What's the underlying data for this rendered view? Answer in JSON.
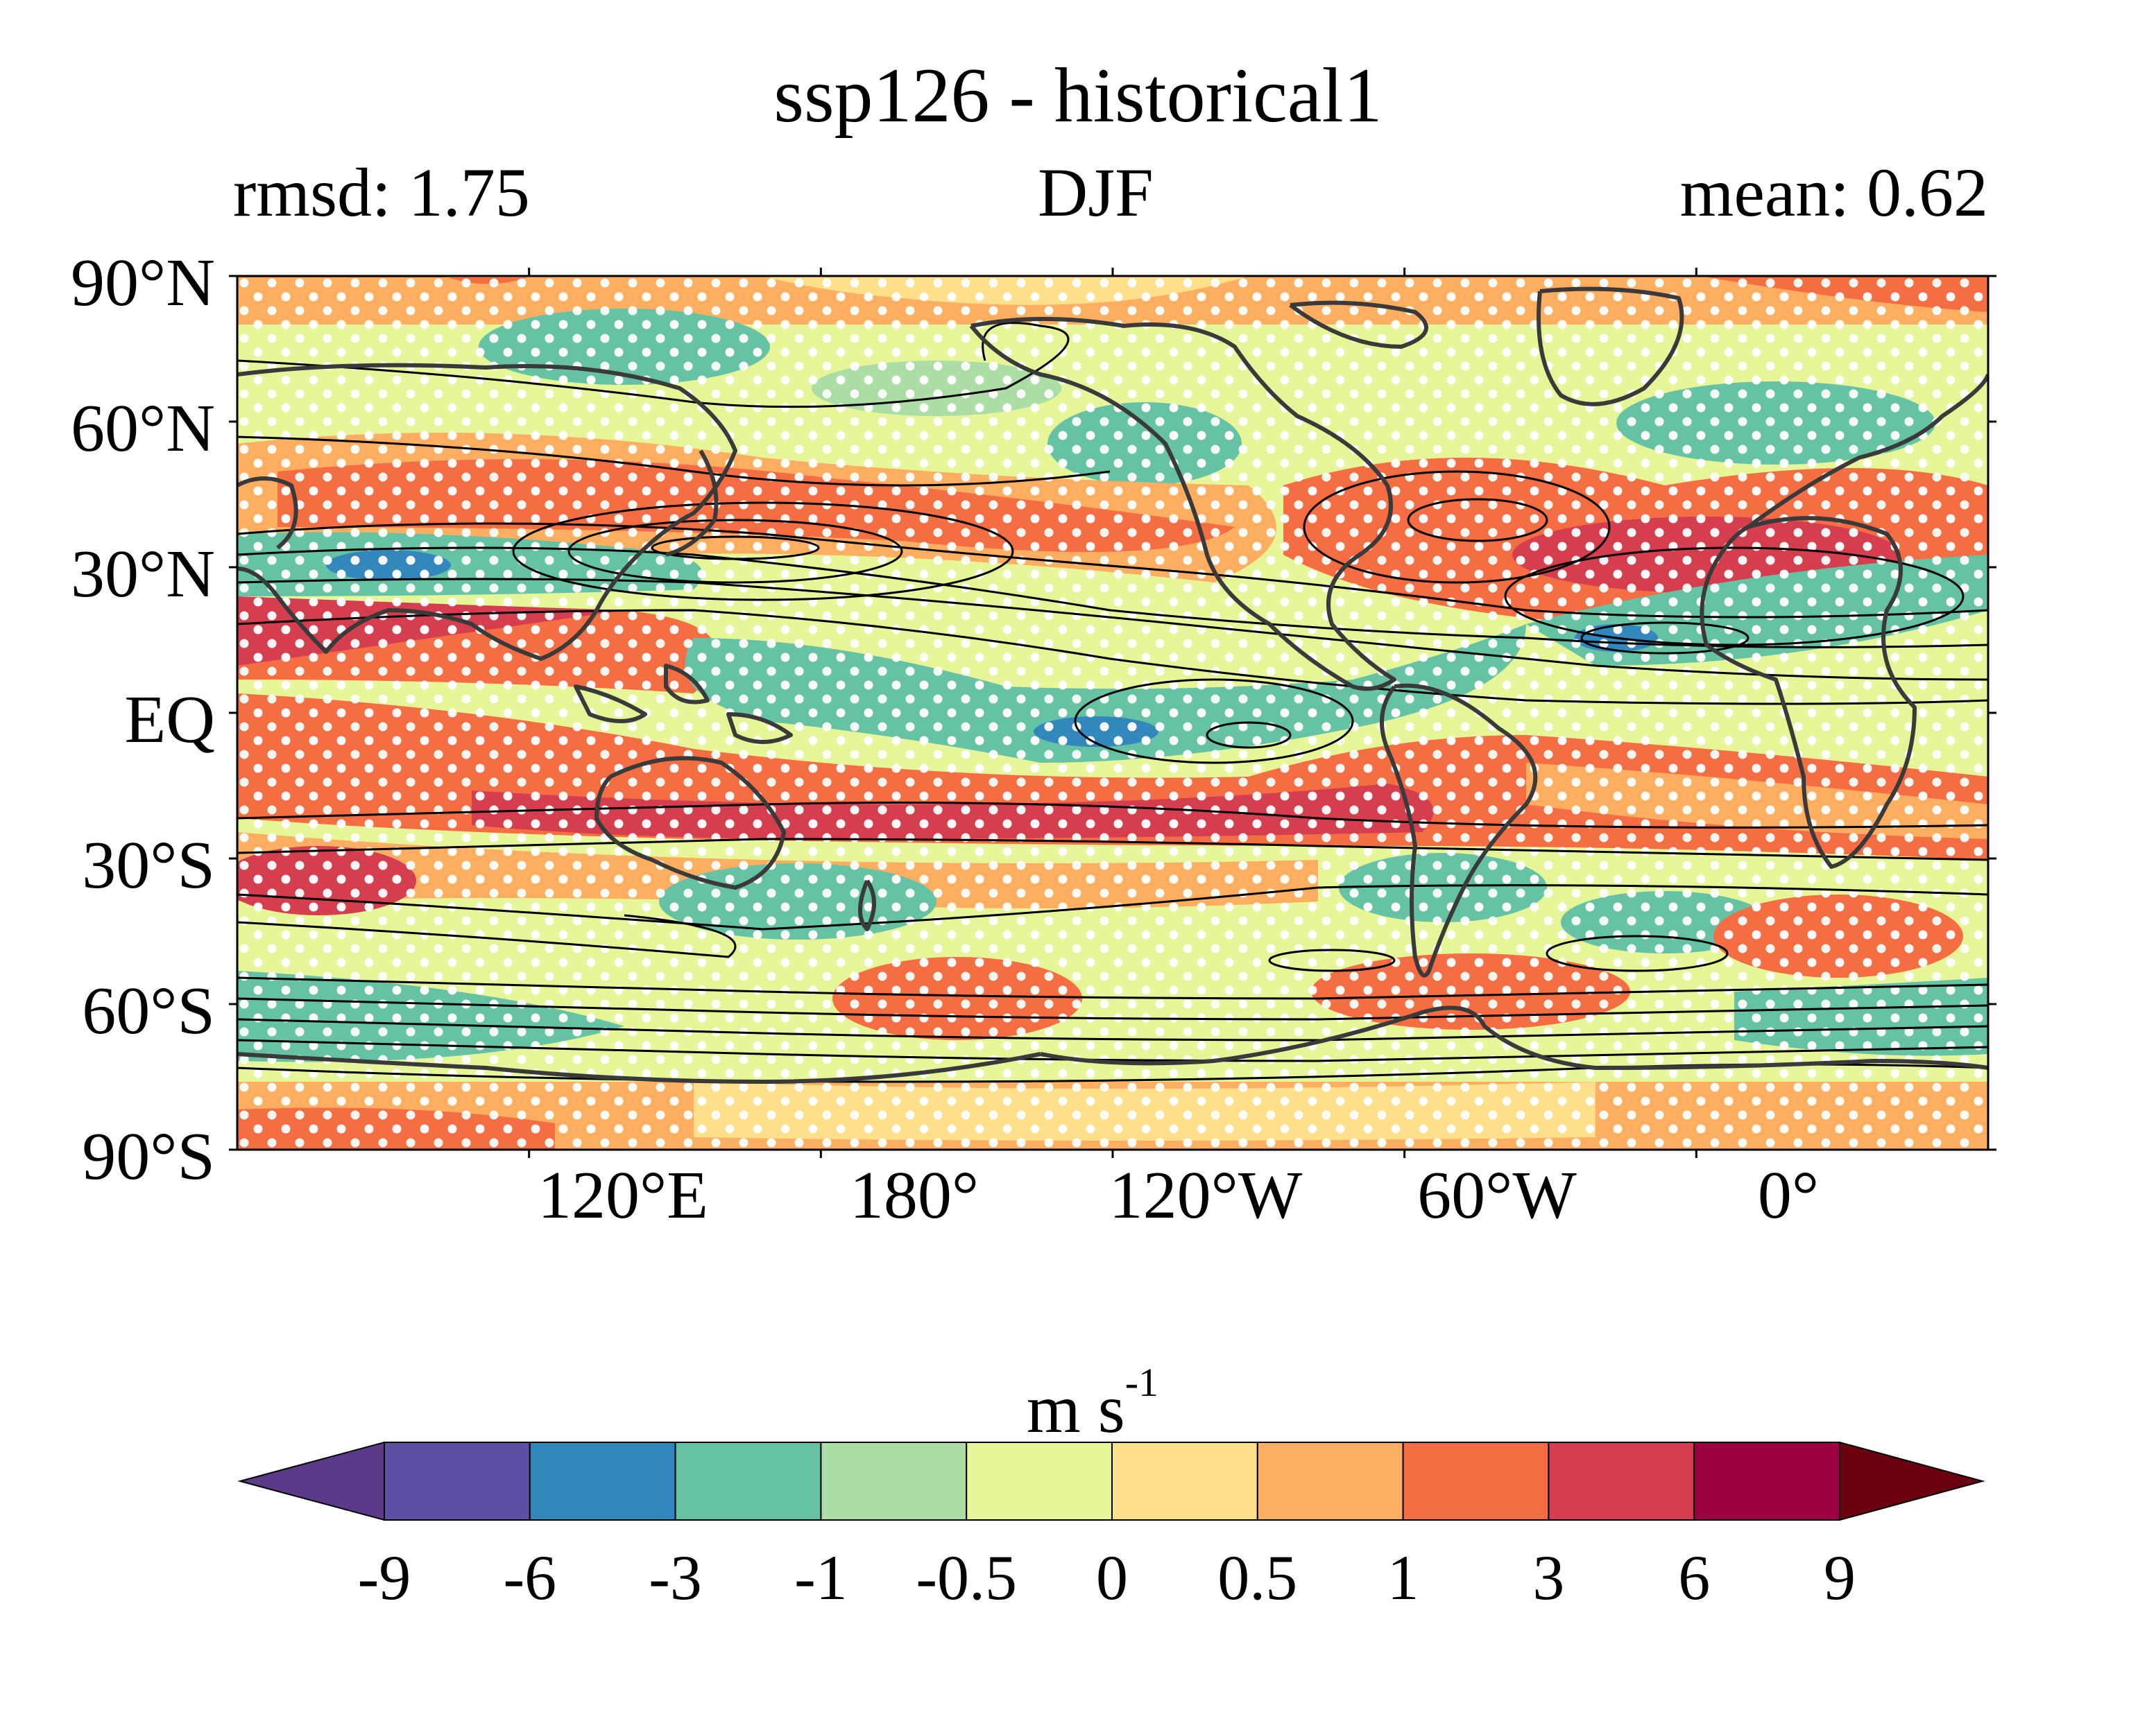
{
  "figure": {
    "title": "ssp126 - historical1",
    "left_label": "rmsd: 1.75",
    "center_label": "DJF",
    "right_label": "mean: 0.62"
  },
  "map": {
    "projection": "equirectangular",
    "lon_range": [
      60,
      420
    ],
    "lat_range": [
      -90,
      90
    ],
    "lat_tick_labels": [
      "90°N",
      "60°N",
      "30°N",
      "EQ",
      "30°S",
      "60°S",
      "90°S"
    ],
    "lat_ticks": [
      90,
      60,
      30,
      0,
      -30,
      -60,
      -90
    ],
    "lon_tick_labels": [
      "120°E",
      "180°",
      "120°W",
      "60°W",
      "0°"
    ],
    "lon_ticks": [
      120,
      180,
      240,
      300,
      360
    ],
    "filled_field": "wind change shaded by color levels",
    "overlay": "black contour lines and white stippling dots",
    "coastline_color": "#3a3a3a"
  },
  "colorbar": {
    "units_base": "m s",
    "units_exp": "-1",
    "levels": [
      "-9",
      "-6",
      "-3",
      "-1",
      "-0.5",
      "0",
      "0.5",
      "1",
      "3",
      "6",
      "9"
    ],
    "colors": [
      "#5e4fa2",
      "#3288bd",
      "#66c2a5",
      "#abdda4",
      "#e6f598",
      "#fee08b",
      "#fdae61",
      "#f46d43",
      "#d53e4f",
      "#9e0142"
    ],
    "under_color": "#5b3a8a",
    "over_color": "#6a0010",
    "extend": "both"
  }
}
